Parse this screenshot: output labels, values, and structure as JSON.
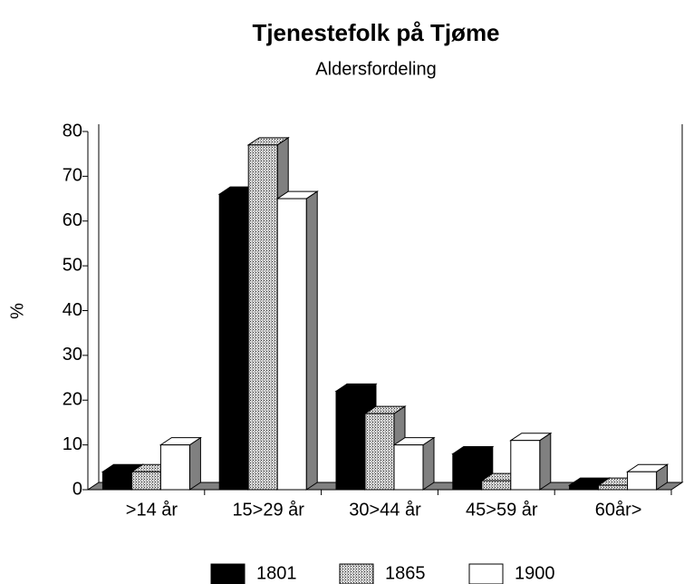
{
  "chart_data": {
    "type": "bar3d",
    "title": "Tjenestefolk på Tjøme",
    "subtitle": "Aldersfordeling",
    "y_label": "%",
    "categories": [
      ">14 år",
      "15>29 år",
      "30>44 år",
      "45>59 år",
      "60år>"
    ],
    "series": [
      {
        "name": "1801",
        "color": "#000000",
        "values": [
          4,
          66,
          22,
          8,
          1
        ]
      },
      {
        "name": "1865",
        "color": "#b8b8b8",
        "pattern": "dotted",
        "values": [
          4,
          77,
          17,
          2,
          1
        ]
      },
      {
        "name": "1900",
        "color": "#ffffff",
        "values": [
          10,
          65,
          10,
          11,
          4
        ]
      }
    ],
    "ylim": [
      0,
      80
    ],
    "yticks": [
      0,
      10,
      20,
      30,
      40,
      50,
      60,
      70,
      80
    ],
    "legend": "bottom"
  }
}
